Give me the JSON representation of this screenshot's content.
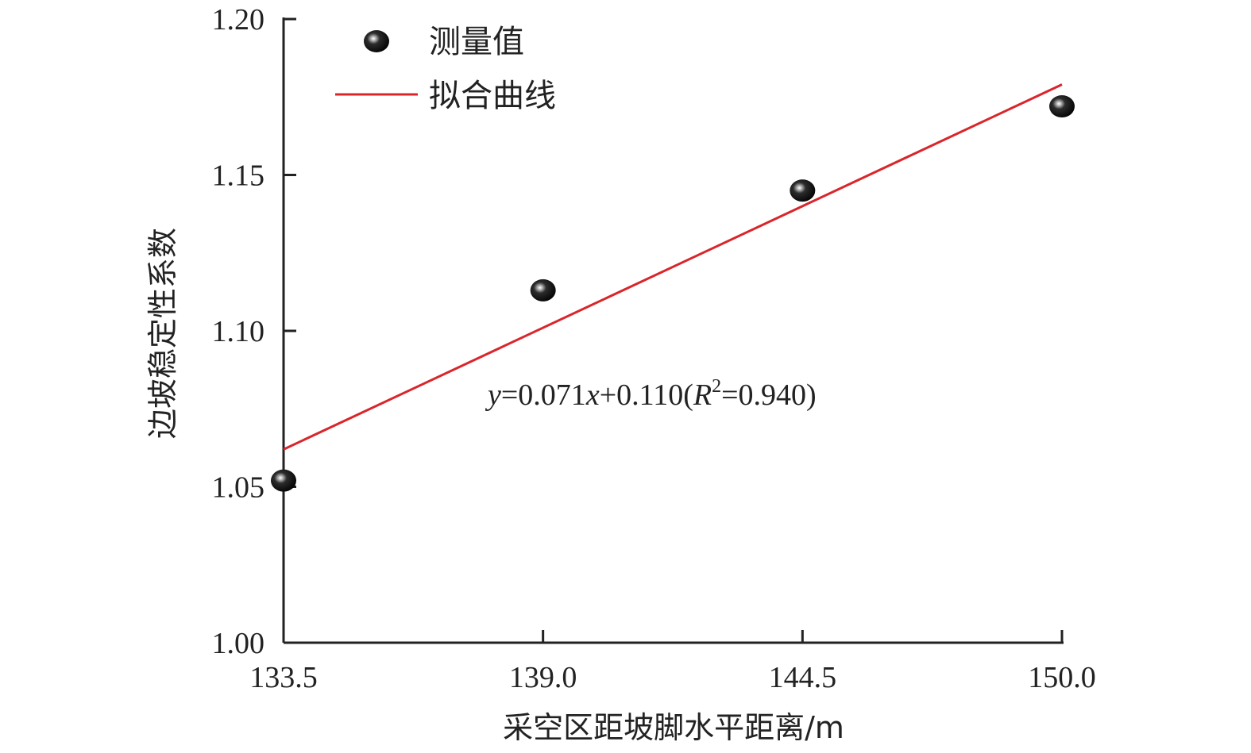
{
  "chart_data": {
    "type": "scatter",
    "xlabel": "采空区距坡脚水平距离/m",
    "ylabel": "边坡稳定性系数",
    "xlim": [
      133.5,
      150.0
    ],
    "ylim": [
      1.0,
      1.2
    ],
    "x_ticks": [
      "133.5",
      "139.0",
      "144.5",
      "150.0"
    ],
    "y_ticks": [
      "1.00",
      "1.05",
      "1.10",
      "1.15",
      "1.20"
    ],
    "legend": {
      "placement": "top-left",
      "entries": [
        "测量值",
        "拟合曲线"
      ]
    },
    "series": [
      {
        "name": "测量值",
        "kind": "points",
        "x": [
          133.5,
          139.0,
          144.5,
          150.0
        ],
        "y": [
          1.052,
          1.113,
          1.145,
          1.172
        ]
      },
      {
        "name": "拟合曲线",
        "kind": "line",
        "color": "#d9262b",
        "x": [
          133.5,
          150.0
        ],
        "y": [
          1.062,
          1.179
        ]
      }
    ],
    "annotation": {
      "y_var": "y",
      "eq_mid": "=0.071",
      "x_var": "x",
      "eq_tail": "+0.110(",
      "r_var": "R",
      "r_sup": "2",
      "eq_end": "=0.940)"
    },
    "grid": false
  }
}
